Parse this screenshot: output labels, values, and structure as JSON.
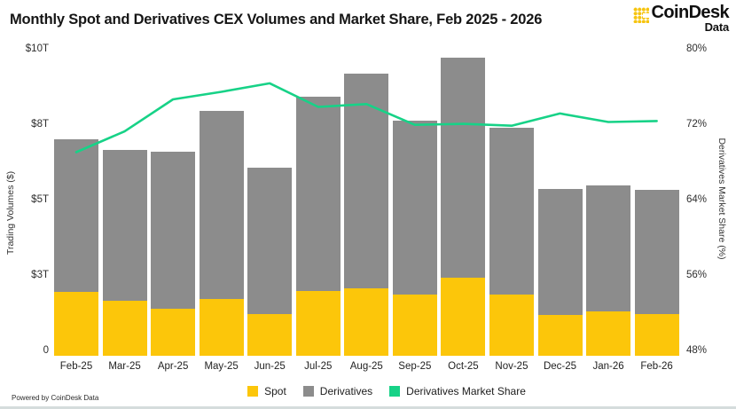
{
  "header": {
    "title": "Monthly Spot and Derivatives CEX Volumes and Market Share, Feb 2025 - 2026",
    "logo": {
      "brand": "CoinDesk",
      "sub": "Data"
    }
  },
  "chart_data": {
    "type": "bar",
    "subtype": "stacked-bars-with-line-overlay",
    "title": "Monthly Spot and Derivatives CEX Volumes and Market Share, Feb 2025 - 2026",
    "categories": [
      "Feb-25",
      "Mar-25",
      "Apr-25",
      "May-25",
      "Jun-25",
      "Jul-25",
      "Aug-25",
      "Sep-25",
      "Oct-25",
      "Nov-25",
      "Dec-25",
      "Jan-26",
      "Feb-26"
    ],
    "series": [
      {
        "name": "Spot",
        "type": "bar",
        "stack": "volumes",
        "axis": "left",
        "color": "#FCC60A",
        "values": [
          2.12,
          1.82,
          1.56,
          1.88,
          1.38,
          2.15,
          2.24,
          2.03,
          2.59,
          2.03,
          1.35,
          1.47,
          1.38
        ]
      },
      {
        "name": "Derivatives",
        "type": "bar",
        "stack": "volumes",
        "axis": "left",
        "color": "#8C8C8C",
        "values": [
          5.06,
          5.0,
          5.2,
          6.24,
          4.86,
          6.44,
          7.11,
          5.76,
          7.29,
          5.53,
          4.18,
          4.18,
          4.12
        ]
      },
      {
        "name": "Derivatives Market Share",
        "type": "line",
        "axis": "right",
        "color": "#17D287",
        "values": [
          69.6,
          71.8,
          75.2,
          76.0,
          76.9,
          74.4,
          74.7,
          72.5,
          72.6,
          72.4,
          73.7,
          72.8,
          72.9
        ]
      }
    ],
    "left_axis": {
      "title": "Trading Volumes ($)",
      "unit": "trillion USD",
      "range": [
        0,
        10
      ],
      "ticks": [
        {
          "label": "0",
          "value": 0
        },
        {
          "label": "$3T",
          "value": 2.5
        },
        {
          "label": "$5T",
          "value": 5
        },
        {
          "label": "$8T",
          "value": 7.5
        },
        {
          "label": "$10T",
          "value": 10
        }
      ]
    },
    "right_axis": {
      "title": "Derivatives Market Share (%)",
      "range": [
        48,
        80
      ],
      "ticks": [
        {
          "label": "48%",
          "value": 48
        },
        {
          "label": "56%",
          "value": 56
        },
        {
          "label": "64%",
          "value": 64
        },
        {
          "label": "72%",
          "value": 72
        },
        {
          "label": "80%",
          "value": 80
        }
      ]
    },
    "grid": false,
    "legend_position": "bottom"
  },
  "legend": {
    "items": [
      {
        "label": "Spot",
        "color": "#FCC60A"
      },
      {
        "label": "Derivatives",
        "color": "#8C8C8C"
      },
      {
        "label": "Derivatives Market Share",
        "color": "#17D287"
      }
    ]
  },
  "footer": {
    "text": "Powered by CoinDesk Data"
  },
  "colors": {
    "spot": "#FCC60A",
    "derivatives": "#8C8C8C",
    "share_line": "#17D287",
    "title_text": "#161616",
    "axis_text": "#2e2e2e"
  }
}
